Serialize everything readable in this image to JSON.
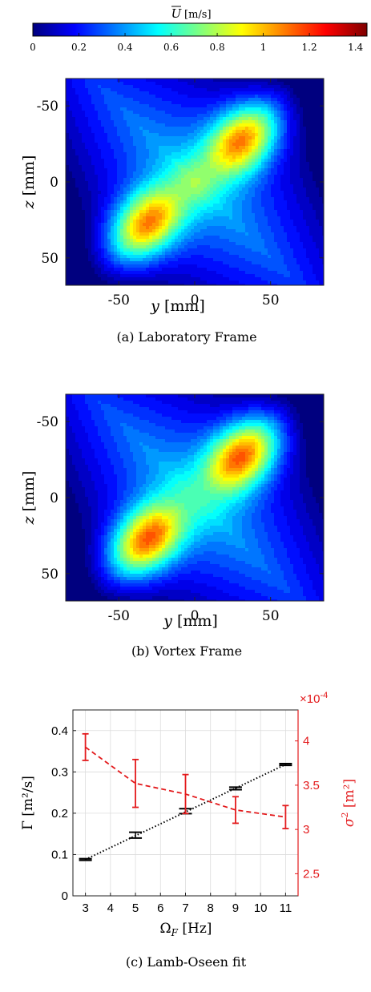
{
  "colorbar": {
    "label": "Ū [m/s]",
    "label_symbol": "U",
    "label_unit": "[m/s]",
    "ticks": [
      "0",
      "0.2",
      "0.4",
      "0.6",
      "0.8",
      "1",
      "1.2",
      "1.4"
    ],
    "tick_values": [
      0,
      0.2,
      0.4,
      0.6,
      0.8,
      1,
      1.2,
      1.4
    ],
    "range": [
      0,
      1.45
    ],
    "colormap": [
      "#00007f",
      "#0000ff",
      "#007fff",
      "#00ffff",
      "#7fff7f",
      "#ffff00",
      "#ff7f00",
      "#ff0000",
      "#7f0000"
    ]
  },
  "chart_data": [
    {
      "type": "heatmap",
      "caption": "(a) Laboratory Frame",
      "xlabel_var": "y",
      "xlabel_unit": "[mm]",
      "ylabel_var": "z",
      "ylabel_unit": "[mm]",
      "xlim": [
        -85,
        85
      ],
      "ylim": [
        -68,
        68
      ],
      "y_reversed": true,
      "xticks": [
        -50,
        0,
        50
      ],
      "yticks": [
        -50,
        0,
        50
      ],
      "vortex_centers": [
        {
          "y": 32,
          "z": -28,
          "U": 1.35
        },
        {
          "y": -32,
          "z": 28,
          "U": 1.35
        }
      ],
      "background_U": 0.5,
      "saddle_U": 0.95
    },
    {
      "type": "heatmap",
      "caption": "(b) Vortex Frame",
      "xlabel_var": "y",
      "xlabel_unit": "[mm]",
      "ylabel_var": "z",
      "ylabel_unit": "[mm]",
      "xlim": [
        -85,
        85
      ],
      "ylim": [
        -68,
        68
      ],
      "y_reversed": true,
      "xticks": [
        -50,
        0,
        50
      ],
      "yticks": [
        -50,
        0,
        50
      ],
      "vortex_centers": [
        {
          "y": 32,
          "z": -28,
          "U": 1.4
        },
        {
          "y": -32,
          "z": 28,
          "U": 1.4
        }
      ],
      "background_U": 0.5,
      "saddle_U": 0.6
    },
    {
      "type": "line",
      "caption": "(c) Lamb-Oseen fit",
      "xlabel": "ΩF [Hz]",
      "xlabel_symbol": "Ω",
      "xlabel_sub": "F",
      "xlabel_unit": "[Hz]",
      "ylabel": "Γ [m²/s]",
      "ylabel_symbol": "Γ",
      "ylabel_unit": "[m²/s]",
      "y2label": "σ² [m²]",
      "y2label_symbol": "σ",
      "y2label_unit": "[m²]",
      "y2_multiplier": "×10⁻⁴",
      "y2_mult_base": "×10",
      "y2_mult_exp": "-4",
      "xlim": [
        2.5,
        11.5
      ],
      "ylim": [
        0,
        0.45
      ],
      "y2lim": [
        2.25,
        4.35
      ],
      "xticks": [
        3,
        4,
        5,
        6,
        7,
        8,
        9,
        10,
        11
      ],
      "yticks": [
        0,
        0.1,
        0.2,
        0.3,
        0.4
      ],
      "y2ticks": [
        2.5,
        3,
        3.5,
        4
      ],
      "grid": true,
      "series": [
        {
          "axis": "left",
          "color": "#000000",
          "style": "markers-with-error",
          "x": [
            3,
            5,
            7,
            9,
            11
          ],
          "y": [
            0.088,
            0.147,
            0.205,
            0.26,
            0.318
          ],
          "err": [
            0.002,
            0.007,
            0.006,
            0.003,
            0.002
          ]
        },
        {
          "axis": "left",
          "color": "#000000",
          "style": "dotted-fit",
          "x": [
            3,
            11
          ],
          "y": [
            0.088,
            0.318
          ]
        },
        {
          "axis": "right",
          "color": "#e31a1c",
          "style": "dashed-with-error",
          "x": [
            3,
            5,
            7,
            9,
            11
          ],
          "y": [
            3.93,
            3.52,
            3.4,
            3.22,
            3.14
          ],
          "err": [
            0.15,
            0.27,
            0.22,
            0.15,
            0.13
          ]
        }
      ]
    }
  ]
}
